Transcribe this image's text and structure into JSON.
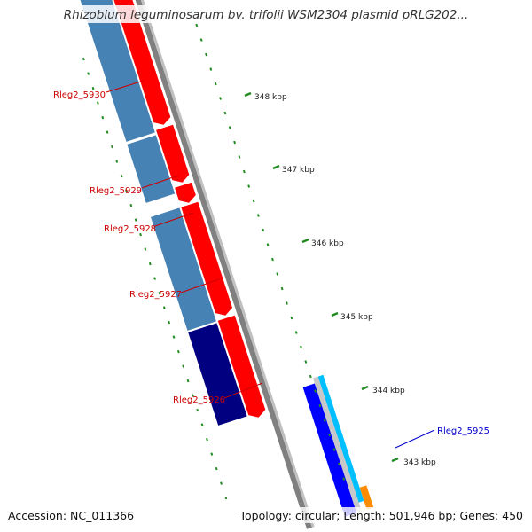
{
  "title": "Rhizobium leguminosarum bv. trifolii WSM2304 plasmid pRLG202...",
  "footer": {
    "accession": "Accession: NC_011366",
    "summary": "Topology: circular; Length: 501,946 bp; Genes: 450"
  },
  "colors": {
    "forward_gene": "#ff0000",
    "reverse_gene": "#4682b4",
    "reverse_gene_dark": "#000080",
    "other_strand_gene": "#0000ff",
    "cyan_feature": "#00bfff",
    "orange_feature": "#ff8c00",
    "backbone": "#808080",
    "ticks": "#228b22",
    "label_red": "#cc0000",
    "label_blue": "#0000cc"
  },
  "ruler": {
    "labels": [
      "348 kbp",
      "347 kbp",
      "346 kbp",
      "345 kbp",
      "344 kbp",
      "343 kbp"
    ]
  },
  "genes": [
    {
      "name": "Rleg2_5930",
      "label_color": "red"
    },
    {
      "name": "Rleg2_5929",
      "label_color": "red"
    },
    {
      "name": "Rleg2_5928",
      "label_color": "red"
    },
    {
      "name": "Rleg2_5927",
      "label_color": "red"
    },
    {
      "name": "Rleg2_5926",
      "label_color": "red"
    },
    {
      "name": "Rleg2_5925",
      "label_color": "blue"
    }
  ]
}
